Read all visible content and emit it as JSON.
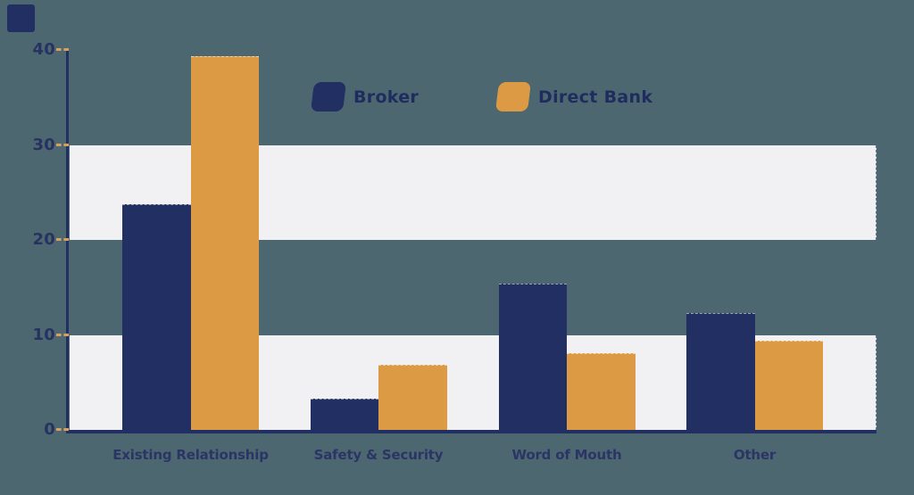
{
  "page": {
    "background_color": "#4d6771",
    "decor": {
      "corner_square_color": "#212f63"
    }
  },
  "chart_data": {
    "type": "bar",
    "title": "",
    "xlabel": "",
    "ylabel": "",
    "categories": [
      "Existing Relationship",
      "Safety & Security",
      "Word of Mouth",
      "Other"
    ],
    "series": [
      {
        "name": "Broker",
        "color": "#212f63",
        "values": [
          23.8,
          3.3,
          15.4,
          12.3
        ]
      },
      {
        "name": "Direct Bank",
        "color": "#dd9a44",
        "values": [
          39.3,
          6.9,
          8.1,
          9.4
        ]
      }
    ],
    "ylim": [
      0,
      40
    ],
    "yticks": [
      0,
      10,
      20,
      30,
      40
    ],
    "grid_bands": [
      [
        20,
        30
      ],
      [
        0,
        10
      ]
    ],
    "band_color": "#f1f1f4",
    "axis_color": "#212f63",
    "tick_mark_color": "#d9a05b",
    "text_color": "#273260",
    "legend_position": "top-center",
    "grid": "alternating horizontal bands, no gridlines"
  }
}
